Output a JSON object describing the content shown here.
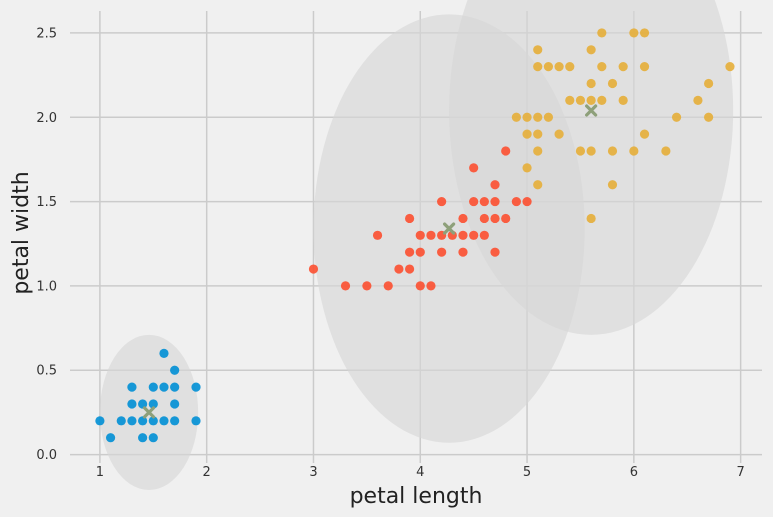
{
  "chart_data": {
    "type": "scatter",
    "title": "",
    "xlabel": "petal length",
    "ylabel": "petal width",
    "xlim": [
      0.72,
      7.2
    ],
    "ylim": [
      -0.05,
      2.63
    ],
    "xticks": [
      1,
      2,
      3,
      4,
      5,
      6,
      7
    ],
    "yticks": [
      0.0,
      0.5,
      1.0,
      1.5,
      2.0,
      2.5
    ],
    "xtick_labels": [
      "1",
      "2",
      "3",
      "4",
      "5",
      "6",
      "7"
    ],
    "ytick_labels": [
      "0.0",
      "0.5",
      "1.0",
      "1.5",
      "2.0",
      "2.5"
    ],
    "grid": true,
    "background": "#f0f0f0",
    "grid_color": "#cbcbcb",
    "clusters": [
      {
        "color": "#008fd5",
        "ellipse": {
          "cx": 1.46,
          "cy": 0.25,
          "rx": 0.46,
          "ry": 0.46
        },
        "centroid": [
          1.46,
          0.25
        ],
        "points": [
          [
            1.0,
            0.2
          ],
          [
            1.1,
            0.1
          ],
          [
            1.2,
            0.2
          ],
          [
            1.3,
            0.2
          ],
          [
            1.3,
            0.3
          ],
          [
            1.3,
            0.4
          ],
          [
            1.4,
            0.1
          ],
          [
            1.4,
            0.2
          ],
          [
            1.4,
            0.3
          ],
          [
            1.5,
            0.1
          ],
          [
            1.5,
            0.2
          ],
          [
            1.5,
            0.3
          ],
          [
            1.5,
            0.4
          ],
          [
            1.6,
            0.2
          ],
          [
            1.6,
            0.4
          ],
          [
            1.6,
            0.6
          ],
          [
            1.7,
            0.2
          ],
          [
            1.7,
            0.3
          ],
          [
            1.7,
            0.4
          ],
          [
            1.7,
            0.5
          ],
          [
            1.9,
            0.2
          ],
          [
            1.9,
            0.4
          ]
        ]
      },
      {
        "color": "#fc4f30",
        "ellipse": {
          "cx": 4.27,
          "cy": 1.34,
          "rx": 1.27,
          "ry": 1.27
        },
        "centroid": [
          4.27,
          1.34
        ],
        "points": [
          [
            3.0,
            1.1
          ],
          [
            3.3,
            1.0
          ],
          [
            3.5,
            1.0
          ],
          [
            3.6,
            1.3
          ],
          [
            3.7,
            1.0
          ],
          [
            3.8,
            1.1
          ],
          [
            3.9,
            1.1
          ],
          [
            3.9,
            1.2
          ],
          [
            3.9,
            1.4
          ],
          [
            4.0,
            1.0
          ],
          [
            4.0,
            1.2
          ],
          [
            4.0,
            1.3
          ],
          [
            4.1,
            1.0
          ],
          [
            4.1,
            1.3
          ],
          [
            4.2,
            1.2
          ],
          [
            4.2,
            1.3
          ],
          [
            4.2,
            1.5
          ],
          [
            4.3,
            1.3
          ],
          [
            4.4,
            1.2
          ],
          [
            4.4,
            1.3
          ],
          [
            4.4,
            1.4
          ],
          [
            4.5,
            1.3
          ],
          [
            4.5,
            1.5
          ],
          [
            4.5,
            1.7
          ],
          [
            4.6,
            1.3
          ],
          [
            4.6,
            1.4
          ],
          [
            4.6,
            1.5
          ],
          [
            4.7,
            1.2
          ],
          [
            4.7,
            1.4
          ],
          [
            4.7,
            1.5
          ],
          [
            4.7,
            1.6
          ],
          [
            4.8,
            1.4
          ],
          [
            4.8,
            1.8
          ],
          [
            4.9,
            1.5
          ],
          [
            5.0,
            1.5
          ]
        ]
      },
      {
        "color": "#e5ae38",
        "ellipse": {
          "cx": 5.6,
          "cy": 2.04,
          "rx": 1.33,
          "ry": 1.33
        },
        "centroid": [
          5.6,
          2.04
        ],
        "points": [
          [
            4.9,
            2.0
          ],
          [
            5.0,
            1.7
          ],
          [
            5.0,
            1.9
          ],
          [
            5.0,
            2.0
          ],
          [
            5.1,
            1.6
          ],
          [
            5.1,
            1.8
          ],
          [
            5.1,
            1.9
          ],
          [
            5.1,
            2.0
          ],
          [
            5.1,
            2.3
          ],
          [
            5.1,
            2.4
          ],
          [
            5.2,
            2.0
          ],
          [
            5.2,
            2.3
          ],
          [
            5.3,
            1.9
          ],
          [
            5.3,
            2.3
          ],
          [
            5.4,
            2.1
          ],
          [
            5.4,
            2.3
          ],
          [
            5.5,
            1.8
          ],
          [
            5.5,
            2.1
          ],
          [
            5.6,
            1.4
          ],
          [
            5.6,
            1.8
          ],
          [
            5.6,
            2.1
          ],
          [
            5.6,
            2.2
          ],
          [
            5.6,
            2.4
          ],
          [
            5.7,
            2.1
          ],
          [
            5.7,
            2.3
          ],
          [
            5.7,
            2.5
          ],
          [
            5.8,
            1.6
          ],
          [
            5.8,
            1.8
          ],
          [
            5.8,
            2.2
          ],
          [
            5.9,
            2.1
          ],
          [
            5.9,
            2.3
          ],
          [
            6.0,
            1.8
          ],
          [
            6.0,
            2.5
          ],
          [
            6.1,
            1.9
          ],
          [
            6.1,
            2.3
          ],
          [
            6.1,
            2.5
          ],
          [
            6.3,
            1.8
          ],
          [
            6.4,
            2.0
          ],
          [
            6.6,
            2.1
          ],
          [
            6.7,
            2.0
          ],
          [
            6.7,
            2.2
          ],
          [
            6.9,
            2.3
          ]
        ]
      }
    ]
  }
}
